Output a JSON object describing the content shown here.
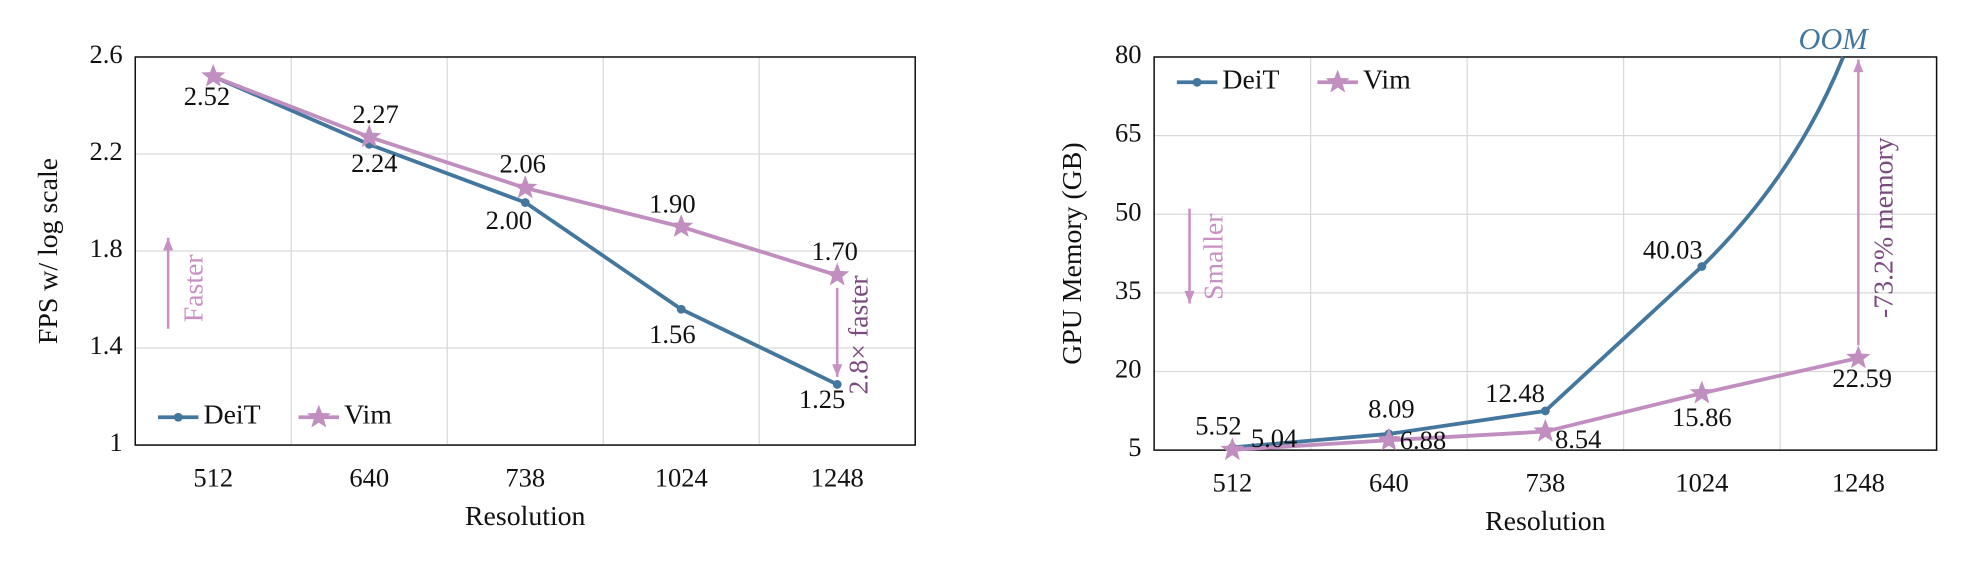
{
  "chart_data": [
    {
      "type": "line",
      "y_label": "FPS w/ log scale",
      "x_label": "Resolution",
      "categories": [
        "512",
        "640",
        "738",
        "1024",
        "1248"
      ],
      "series": [
        {
          "name": "DeiT",
          "color": "#44779e",
          "values": [
            2.52,
            2.24,
            2.0,
            1.56,
            1.25
          ],
          "value_labels": [
            null,
            "2.24",
            "2.00",
            "1.56",
            "1.25"
          ]
        },
        {
          "name": "Vim",
          "color": "#c08fbf",
          "values": [
            2.52,
            2.27,
            2.06,
            1.9,
            1.7
          ],
          "value_labels": [
            "2.52",
            "2.27",
            "2.06",
            "1.90",
            "1.70"
          ]
        }
      ],
      "ylim": [
        1,
        2.6
      ],
      "yticks": [
        1,
        1.4,
        1.8,
        2.2,
        2.6
      ],
      "grid": true,
      "legend": "lower left",
      "annotations": [
        "Faster",
        "2.8× faster"
      ]
    },
    {
      "type": "line",
      "y_label": "GPU Memory (GB)",
      "x_label": "Resolution",
      "categories": [
        "512",
        "640",
        "738",
        "1024",
        "1248"
      ],
      "series": [
        {
          "name": "DeiT",
          "color": "#44779e",
          "values": [
            5.52,
            8.09,
            12.48,
            40.03,
            null
          ]
        },
        {
          "name": "Vim",
          "color": "#c08fbf",
          "values": [
            5.04,
            6.88,
            8.54,
            15.86,
            22.59
          ]
        }
      ],
      "ylim": [
        5,
        80
      ],
      "yticks": [
        5,
        20,
        35,
        50,
        65,
        80
      ],
      "grid": true,
      "legend": "upper left",
      "annotations": [
        "Smaller",
        "-73.2% memory",
        "OOM"
      ]
    }
  ]
}
